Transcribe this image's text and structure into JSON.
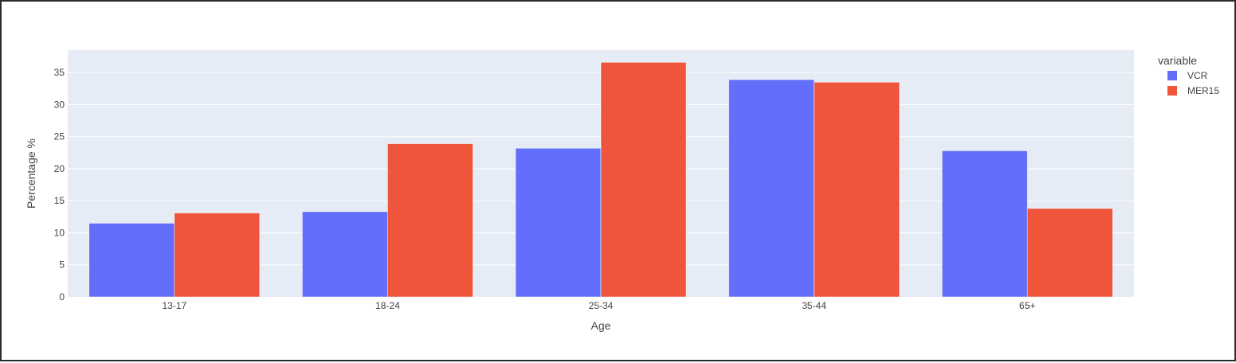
{
  "chart_data": {
    "type": "bar",
    "barmode": "group",
    "categories": [
      "13-17",
      "18-24",
      "25-34",
      "35-44",
      "65+"
    ],
    "series": [
      {
        "name": "VCR",
        "values": [
          11.5,
          13.3,
          23.2,
          33.9,
          22.8
        ],
        "color": "#636efa"
      },
      {
        "name": "MER15",
        "values": [
          13.1,
          23.9,
          36.6,
          33.5,
          13.8
        ],
        "color": "#ef553b"
      }
    ],
    "xlabel": "Age",
    "ylabel": "Percentage %",
    "ylim": [
      0,
      38.5
    ],
    "yticks": [
      0,
      5,
      10,
      15,
      20,
      25,
      30,
      35
    ],
    "grid": true,
    "legend": {
      "title": "variable",
      "position": "top-right"
    },
    "colors": {
      "plot_background": "#e5ecf6",
      "gridline": "#ffffff"
    }
  }
}
